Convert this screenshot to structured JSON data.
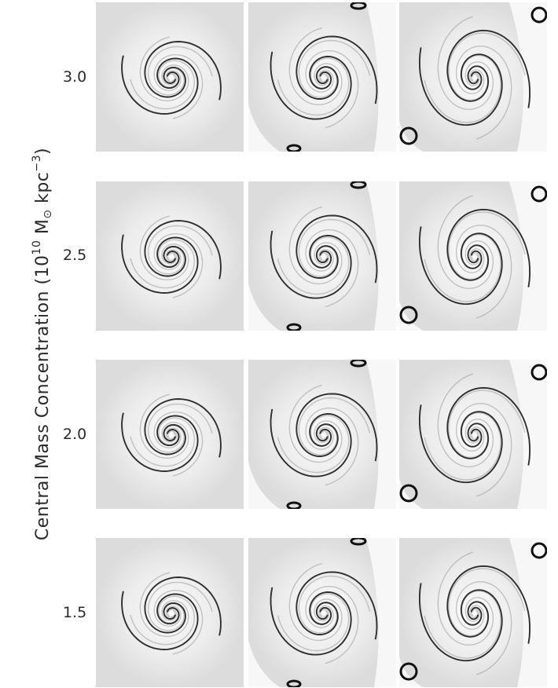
{
  "y_axis": {
    "prefix": "Central Mass Concentration (10",
    "exp": "10",
    "unit_m": " M",
    "sun": "⊙",
    "unit_kpc": " kpc",
    "kpc_exp": "−3",
    "suffix": ")"
  },
  "rows": [
    {
      "label": "3.0"
    },
    {
      "label": "2.5"
    },
    {
      "label": "2.0"
    },
    {
      "label": "1.5"
    }
  ],
  "columns": 3,
  "colors": {
    "background": "#ffffff",
    "panel": "#eeeeee",
    "arm": "#2f2f2f",
    "faint_arm": "#9a9a9a",
    "shock": "#111111"
  }
}
